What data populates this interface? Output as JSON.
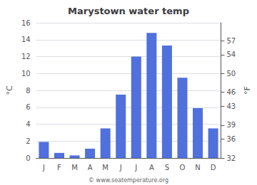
{
  "chart_data": {
    "type": "bar",
    "title": "Marystown water temp",
    "categories": [
      "J",
      "F",
      "M",
      "A",
      "M",
      "J",
      "J",
      "A",
      "S",
      "O",
      "N",
      "D"
    ],
    "values": [
      1.9,
      0.6,
      0.3,
      1.1,
      3.5,
      7.5,
      12.0,
      14.8,
      13.3,
      9.5,
      5.9,
      3.5
    ],
    "ylabel": "°C",
    "y2label": "°F",
    "ylim": [
      0,
      16
    ],
    "yticks": [
      0,
      2,
      4,
      6,
      8,
      10,
      12,
      14,
      16
    ],
    "y2lim": [
      32,
      60.8
    ],
    "y2ticks": [
      32,
      36,
      39,
      43,
      46,
      50,
      54,
      57
    ],
    "grid": true,
    "annotations": [
      "© www.seatemperature.org"
    ]
  }
}
